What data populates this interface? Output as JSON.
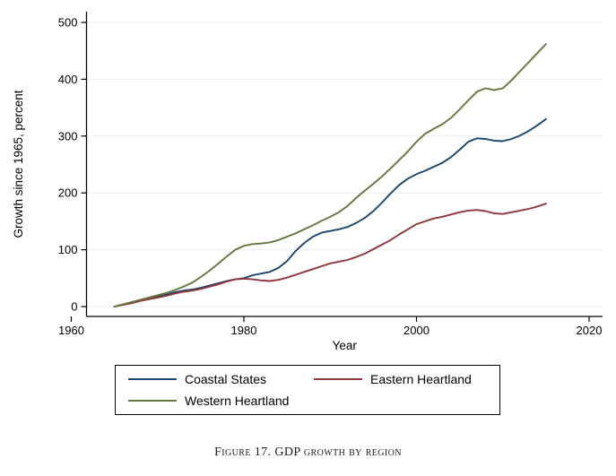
{
  "figure": {
    "caption": "Figure 17. GDP growth by region"
  },
  "chart_data": {
    "type": "line",
    "title": "",
    "xlabel": "Year",
    "ylabel": "Growth since 1965, percent",
    "xlim": [
      1958.3,
      2021.6
    ],
    "ylim": [
      -18,
      520
    ],
    "xticks": [
      1960,
      1980,
      2000,
      2020
    ],
    "yticks": [
      0,
      100,
      200,
      300,
      400,
      500
    ],
    "grid": "horizontal-only",
    "gridline_color": "#ebebeb",
    "axis_color": "#000000",
    "legend_position": "bottom-box",
    "x": [
      1965,
      1966,
      1967,
      1968,
      1969,
      1970,
      1971,
      1972,
      1973,
      1974,
      1975,
      1976,
      1977,
      1978,
      1979,
      1980,
      1981,
      1982,
      1983,
      1984,
      1985,
      1986,
      1987,
      1988,
      1989,
      1990,
      1991,
      1992,
      1993,
      1994,
      1995,
      1996,
      1997,
      1998,
      1999,
      2000,
      2001,
      2002,
      2003,
      2004,
      2005,
      2006,
      2007,
      2008,
      2009,
      2010,
      2011,
      2012,
      2013,
      2014,
      2015
    ],
    "series": [
      {
        "name": "Coastal States",
        "color": "#1a476f",
        "values": [
          0,
          4,
          7,
          11,
          15,
          18,
          21,
          25,
          28,
          30,
          33,
          37,
          41,
          45,
          48,
          50,
          55,
          58,
          61,
          68,
          80,
          98,
          112,
          123,
          130,
          133,
          136,
          140,
          147,
          156,
          168,
          183,
          199,
          214,
          225,
          233,
          239,
          246,
          253,
          263,
          276,
          290,
          296,
          295,
          292,
          291,
          295,
          301,
          309,
          319,
          330
        ]
      },
      {
        "name": "Eastern Heartland",
        "color": "#90353b",
        "values": [
          0,
          3,
          6,
          10,
          13,
          16,
          19,
          23,
          26,
          28,
          31,
          35,
          39,
          44,
          48,
          49,
          48,
          46,
          45,
          47,
          51,
          56,
          61,
          66,
          71,
          76,
          79,
          82,
          87,
          93,
          101,
          109,
          117,
          127,
          136,
          145,
          150,
          155,
          158,
          162,
          166,
          169,
          170,
          168,
          164,
          163,
          166,
          169,
          172,
          176,
          181
        ]
      },
      {
        "name": "Western Heartland",
        "color": "#64773c",
        "values": [
          0,
          4,
          8,
          12,
          16,
          20,
          24,
          29,
          35,
          42,
          52,
          63,
          75,
          88,
          100,
          107,
          110,
          111,
          113,
          117,
          123,
          129,
          136,
          143,
          151,
          158,
          166,
          177,
          191,
          204,
          216,
          229,
          243,
          258,
          273,
          290,
          304,
          313,
          321,
          332,
          347,
          363,
          378,
          384,
          381,
          384,
          398,
          414,
          430,
          446,
          462
        ]
      }
    ]
  }
}
